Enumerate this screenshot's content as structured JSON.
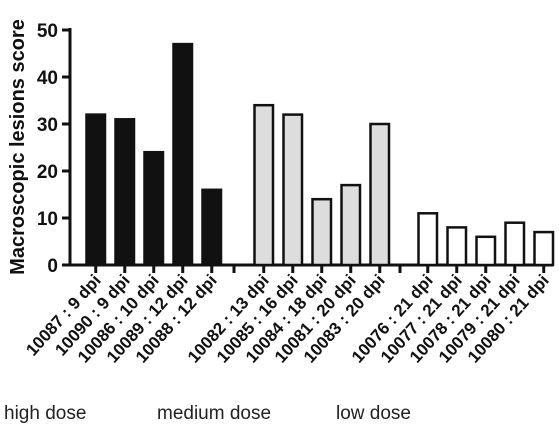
{
  "chart_data": {
    "type": "bar",
    "title": "",
    "xlabel": "",
    "ylabel": "Macroscopic lesions score",
    "ylim": [
      0,
      50
    ],
    "yticks": [
      0,
      10,
      20,
      30,
      40,
      50
    ],
    "grid": false,
    "legend": "none",
    "groups": [
      {
        "name": "high dose",
        "fill": "#111111",
        "categories": [
          "10087 : 9 dpi",
          "10090 : 9 dpi",
          "10086 : 10 dpi",
          "10089 : 12 dpi",
          "10088 : 12 dpi"
        ],
        "values": [
          32,
          31,
          24,
          47,
          16
        ]
      },
      {
        "name": "medium dose",
        "fill": "#dddddd",
        "categories": [
          "10082 : 13 dpi",
          "10085 : 16 dpi",
          "10084 : 18 dpi",
          "10081 : 20 dpi",
          "10083 : 20 dpi"
        ],
        "values": [
          34,
          32,
          14,
          17,
          30
        ]
      },
      {
        "name": "low dose",
        "fill": "#ffffff",
        "categories": [
          "10076 : 21 dpi",
          "10077 : 21 dpi",
          "10078 : 21 dpi",
          "10079 : 21 dpi",
          "10080 : 21 dpi"
        ],
        "values": [
          11,
          8,
          6,
          9,
          7
        ]
      }
    ]
  }
}
